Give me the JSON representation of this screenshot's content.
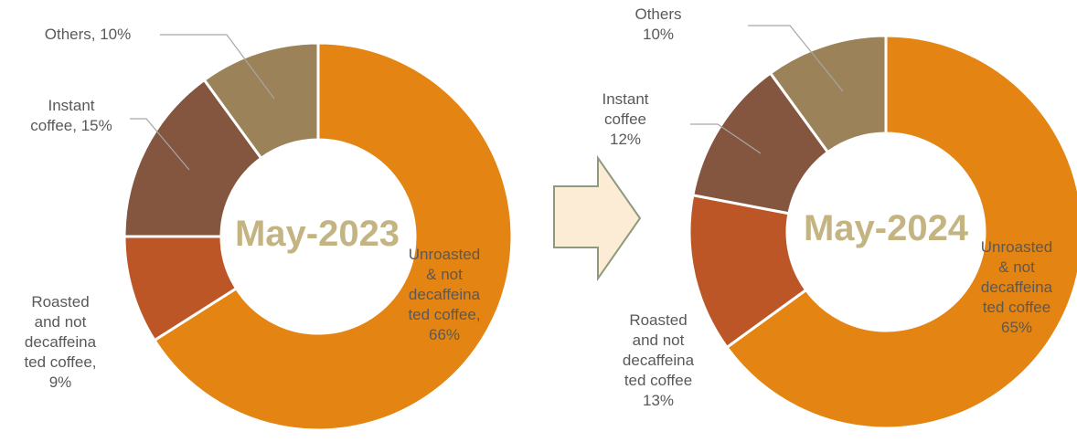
{
  "chart_data": [
    {
      "type": "pie",
      "title": "May-2023",
      "slices": [
        {
          "label_lines": [
            "Unroasted",
            "& not",
            "decaffeina",
            "ted coffee,",
            "66%"
          ],
          "value": 66,
          "color": "#e38413"
        },
        {
          "label_lines": [
            "Roasted",
            "and not",
            "decaffeina",
            "ted coffee,",
            "9%"
          ],
          "value": 9,
          "color": "#bd5627"
        },
        {
          "label_lines": [
            "Instant",
            "coffee, 15%"
          ],
          "value": 15,
          "color": "#845640"
        },
        {
          "label_lines": [
            "Others, 10%"
          ],
          "value": 10,
          "color": "#9b8258"
        }
      ]
    },
    {
      "type": "pie",
      "title": "May-2024",
      "slices": [
        {
          "label_lines": [
            "Unroasted",
            "& not",
            "decaffeina",
            "ted coffee",
            "65%"
          ],
          "value": 65,
          "color": "#e38413"
        },
        {
          "label_lines": [
            "Roasted",
            "and not",
            "decaffeina",
            "ted coffee",
            "13%"
          ],
          "value": 13,
          "color": "#bd5627"
        },
        {
          "label_lines": [
            "Instant",
            "coffee",
            "12%"
          ],
          "value": 12,
          "color": "#845640"
        },
        {
          "label_lines": [
            "Others",
            "10%"
          ],
          "value": 10,
          "color": "#9b8258"
        }
      ]
    }
  ],
  "arrow": {
    "fill": "#fcebd5",
    "stroke": "#8e9a7a"
  }
}
